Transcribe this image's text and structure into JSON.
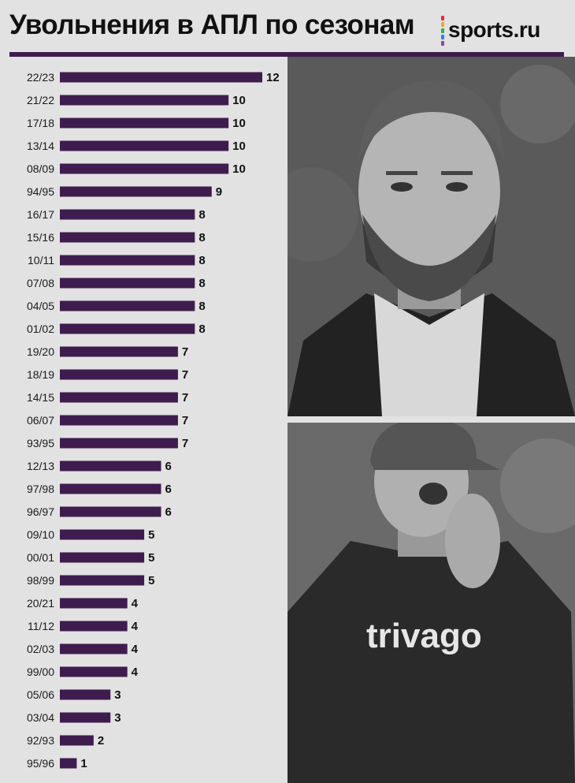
{
  "header": {
    "title": "Увольнения в АПЛ по сезонам",
    "brand": "sports.ru",
    "brand_dot_colors": [
      "#e8294b",
      "#f5a623",
      "#2bb24c",
      "#2f80ed",
      "#8e44ad"
    ]
  },
  "colors": {
    "bar": "#3f1c4e",
    "rule": "#3f1c4e",
    "background": "#e2e2e2"
  },
  "chart_data": {
    "type": "bar",
    "orientation": "horizontal",
    "title": "Увольнения в АПЛ по сезонам",
    "categories": [
      "22/23",
      "21/22",
      "17/18",
      "13/14",
      "08/09",
      "94/95",
      "16/17",
      "15/16",
      "10/11",
      "07/08",
      "04/05",
      "01/02",
      "19/20",
      "18/19",
      "14/15",
      "06/07",
      "93/95",
      "12/13",
      "97/98",
      "96/97",
      "09/10",
      "00/01",
      "98/99",
      "20/21",
      "11/12",
      "02/03",
      "99/00",
      "05/06",
      "03/04",
      "92/93",
      "95/96"
    ],
    "values": [
      12,
      10,
      10,
      10,
      10,
      9,
      8,
      8,
      8,
      8,
      8,
      8,
      7,
      7,
      7,
      7,
      7,
      6,
      6,
      6,
      5,
      5,
      5,
      4,
      4,
      4,
      4,
      3,
      3,
      2,
      1
    ],
    "xlim": [
      0,
      12
    ],
    "grid": false,
    "data_labels": true
  },
  "photos": [
    {
      "name": "coach-photo-top"
    },
    {
      "name": "coach-photo-bottom"
    }
  ]
}
